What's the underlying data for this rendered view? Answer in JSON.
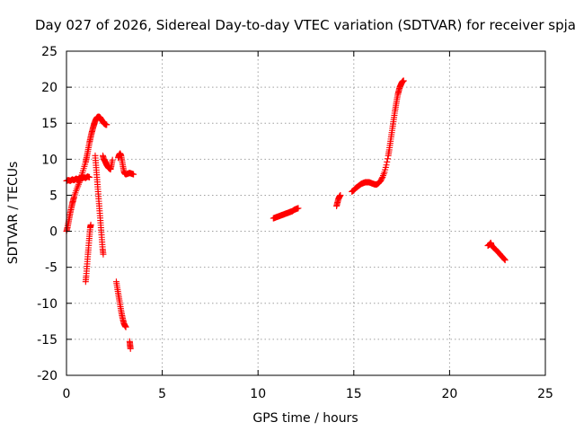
{
  "chart_data": {
    "type": "scatter",
    "title": "Day 027 of 2026, Sidereal Day-to-day VTEC variation (SDTVAR) for receiver spja",
    "xlabel": "GPS time / hours",
    "ylabel": "SDTVAR / TECUs",
    "xlim": [
      0,
      25
    ],
    "ylim": [
      -20,
      25
    ],
    "xticks": [
      "0",
      "5",
      "10",
      "15",
      "20",
      "25"
    ],
    "yticks": [
      "25",
      "20",
      "15",
      "10",
      "5",
      "0",
      "-5",
      "-10",
      "-15",
      "-20"
    ],
    "grid": true,
    "marker": "plus",
    "color": "#ff0000",
    "series": [
      {
        "segments": [
          [
            [
              0.0,
              7.0
            ],
            [
              0.1,
              7.1
            ],
            [
              0.2,
              7.0
            ],
            [
              0.3,
              7.2
            ],
            [
              0.4,
              7.1
            ],
            [
              0.5,
              7.3
            ],
            [
              0.6,
              7.2
            ],
            [
              0.7,
              7.4
            ],
            [
              0.8,
              7.3
            ],
            [
              0.9,
              7.5
            ],
            [
              1.0,
              7.4
            ],
            [
              1.1,
              7.6
            ],
            [
              1.2,
              7.5
            ]
          ],
          [
            [
              0.0,
              0.0
            ],
            [
              0.05,
              0.5
            ],
            [
              0.1,
              1.2
            ],
            [
              0.15,
              1.9
            ],
            [
              0.2,
              2.6
            ],
            [
              0.25,
              3.2
            ],
            [
              0.3,
              3.8
            ],
            [
              0.35,
              4.3
            ],
            [
              0.4,
              4.8
            ],
            [
              0.5,
              5.6
            ],
            [
              0.6,
              6.3
            ],
            [
              0.7,
              7.0
            ],
            [
              0.8,
              7.8
            ],
            [
              0.9,
              8.7
            ],
            [
              1.0,
              9.6
            ],
            [
              1.05,
              10.2
            ],
            [
              1.1,
              10.9
            ],
            [
              1.15,
              11.6
            ],
            [
              1.2,
              12.3
            ],
            [
              1.25,
              12.9
            ],
            [
              1.3,
              13.5
            ],
            [
              1.35,
              14.0
            ],
            [
              1.4,
              14.5
            ],
            [
              1.45,
              14.9
            ],
            [
              1.5,
              15.3
            ],
            [
              1.55,
              15.6
            ],
            [
              1.6,
              15.8
            ],
            [
              1.65,
              15.9
            ],
            [
              1.7,
              15.9
            ],
            [
              1.75,
              15.8
            ],
            [
              1.8,
              15.6
            ],
            [
              1.85,
              15.4
            ],
            [
              1.9,
              15.2
            ],
            [
              1.95,
              15.0
            ],
            [
              2.0,
              14.9
            ],
            [
              2.05,
              14.8
            ],
            [
              2.1,
              14.8
            ]
          ],
          [
            [
              1.0,
              -7.0
            ],
            [
              1.03,
              -6.2
            ],
            [
              1.06,
              -5.2
            ],
            [
              1.09,
              -4.2
            ],
            [
              1.12,
              -3.2
            ],
            [
              1.15,
              -2.3
            ],
            [
              1.18,
              -1.3
            ],
            [
              1.21,
              -0.4
            ],
            [
              1.24,
              0.5
            ],
            [
              1.27,
              0.9
            ]
          ],
          [
            [
              1.5,
              10.5
            ],
            [
              1.53,
              9.5
            ],
            [
              1.56,
              8.5
            ],
            [
              1.59,
              7.5
            ],
            [
              1.62,
              6.5
            ],
            [
              1.65,
              5.5
            ],
            [
              1.68,
              4.5
            ],
            [
              1.71,
              3.5
            ],
            [
              1.74,
              2.5
            ],
            [
              1.77,
              1.5
            ],
            [
              1.8,
              0.5
            ],
            [
              1.83,
              -0.5
            ],
            [
              1.86,
              -1.5
            ],
            [
              1.89,
              -2.5
            ],
            [
              1.92,
              -3.2
            ]
          ],
          [
            [
              1.9,
              10.5
            ],
            [
              1.95,
              10.0
            ],
            [
              2.0,
              9.8
            ],
            [
              2.05,
              9.5
            ],
            [
              2.1,
              9.2
            ],
            [
              2.15,
              9.0
            ],
            [
              2.2,
              8.8
            ],
            [
              2.25,
              8.7
            ],
            [
              2.3,
              8.6
            ],
            [
              2.35,
              9.2
            ],
            [
              2.4,
              9.9
            ]
          ],
          [
            [
              2.6,
              -7.0
            ],
            [
              2.65,
              -7.8
            ],
            [
              2.7,
              -8.6
            ],
            [
              2.75,
              -9.4
            ],
            [
              2.8,
              -10.2
            ],
            [
              2.85,
              -11.0
            ],
            [
              2.9,
              -11.7
            ],
            [
              2.95,
              -12.3
            ],
            [
              3.0,
              -12.8
            ],
            [
              3.05,
              -13.1
            ],
            [
              3.1,
              -13.3
            ]
          ],
          [
            [
              2.7,
              10.2
            ],
            [
              2.75,
              10.6
            ],
            [
              2.8,
              10.8
            ],
            [
              2.85,
              10.5
            ],
            [
              2.9,
              9.8
            ],
            [
              2.95,
              9.0
            ],
            [
              3.0,
              8.3
            ],
            [
              3.05,
              8.0
            ],
            [
              3.1,
              7.9
            ],
            [
              3.2,
              8.0
            ],
            [
              3.3,
              8.1
            ],
            [
              3.4,
              8.0
            ],
            [
              3.5,
              7.9
            ]
          ],
          [
            [
              3.3,
              -15.3
            ],
            [
              3.32,
              -15.8
            ],
            [
              3.34,
              -16.3
            ]
          ],
          [
            [
              10.8,
              1.8
            ],
            [
              10.9,
              1.9
            ],
            [
              11.0,
              2.0
            ],
            [
              11.1,
              2.1
            ],
            [
              11.2,
              2.2
            ],
            [
              11.3,
              2.3
            ],
            [
              11.4,
              2.4
            ],
            [
              11.5,
              2.5
            ],
            [
              11.6,
              2.6
            ],
            [
              11.7,
              2.7
            ],
            [
              11.8,
              2.8
            ],
            [
              11.9,
              3.0
            ],
            [
              12.0,
              3.1
            ],
            [
              12.1,
              3.2
            ]
          ],
          [
            [
              14.1,
              3.5
            ],
            [
              14.15,
              4.0
            ],
            [
              14.2,
              4.5
            ],
            [
              14.25,
              4.8
            ],
            [
              14.3,
              5.0
            ]
          ],
          [
            [
              14.9,
              5.5
            ],
            [
              15.0,
              5.7
            ],
            [
              15.1,
              6.0
            ],
            [
              15.2,
              6.2
            ],
            [
              15.3,
              6.4
            ],
            [
              15.4,
              6.6
            ],
            [
              15.5,
              6.7
            ],
            [
              15.6,
              6.8
            ],
            [
              15.7,
              6.8
            ],
            [
              15.8,
              6.8
            ],
            [
              15.9,
              6.7
            ],
            [
              16.0,
              6.6
            ],
            [
              16.1,
              6.5
            ],
            [
              16.2,
              6.5
            ],
            [
              16.3,
              6.7
            ],
            [
              16.4,
              7.0
            ],
            [
              16.5,
              7.5
            ],
            [
              16.6,
              8.2
            ],
            [
              16.7,
              9.2
            ],
            [
              16.8,
              10.5
            ],
            [
              16.85,
              11.3
            ],
            [
              16.9,
              12.2
            ],
            [
              16.95,
              13.1
            ],
            [
              17.0,
              14.0
            ],
            [
              17.05,
              14.9
            ],
            [
              17.1,
              15.8
            ],
            [
              17.15,
              16.7
            ],
            [
              17.2,
              17.5
            ],
            [
              17.25,
              18.3
            ],
            [
              17.3,
              19.0
            ],
            [
              17.35,
              19.5
            ],
            [
              17.4,
              20.0
            ],
            [
              17.45,
              20.3
            ],
            [
              17.5,
              20.6
            ],
            [
              17.55,
              20.8
            ],
            [
              17.6,
              20.9
            ]
          ],
          [
            [
              22.0,
              -2.0
            ],
            [
              22.1,
              -1.8
            ],
            [
              22.15,
              -1.6
            ],
            [
              22.2,
              -2.0
            ],
            [
              22.3,
              -2.3
            ],
            [
              22.4,
              -2.5
            ],
            [
              22.5,
              -2.8
            ],
            [
              22.6,
              -3.1
            ],
            [
              22.7,
              -3.4
            ],
            [
              22.8,
              -3.7
            ],
            [
              22.9,
              -4.0
            ]
          ]
        ]
      }
    ]
  }
}
